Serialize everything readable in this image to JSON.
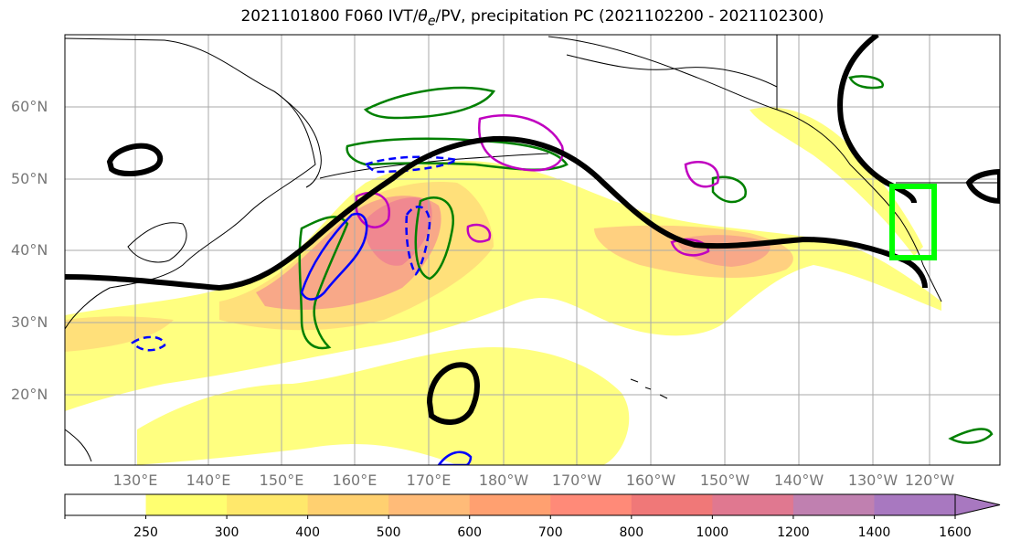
{
  "title": {
    "prefix": "2021101800 F060 IVT/",
    "theta": "θ",
    "theta_sub": "e",
    "suffix": "/PV, precipitation PC (2021102200 - 2021102300)"
  },
  "axes": {
    "lat_labels": [
      "60°N",
      "50°N",
      "40°N",
      "30°N",
      "20°N"
    ],
    "lon_labels": [
      "130°E",
      "140°E",
      "150°E",
      "160°E",
      "170°E",
      "180°W",
      "170°W",
      "160°W",
      "150°W",
      "140°W",
      "130°W",
      "120°W"
    ],
    "grid": true
  },
  "colorbar": {
    "ticks": [
      "250",
      "300",
      "400",
      "500",
      "600",
      "700",
      "800",
      "1000",
      "1200",
      "1400",
      "1600"
    ],
    "colors": [
      "#ffffff",
      "#ffff70",
      "#ffe86b",
      "#ffd070",
      "#ffbb78",
      "#ffa070",
      "#ff8a78",
      "#f07878",
      "#e07890",
      "#c080b0",
      "#a878c0"
    ],
    "extend": "max"
  },
  "colors": {
    "ivt_contour": "#000000",
    "theta_e": "#008000",
    "pv_positive": "#c000c0",
    "pv_negative": "#0000ff",
    "region_box": "#00ff00",
    "coastline": "#000000"
  }
}
